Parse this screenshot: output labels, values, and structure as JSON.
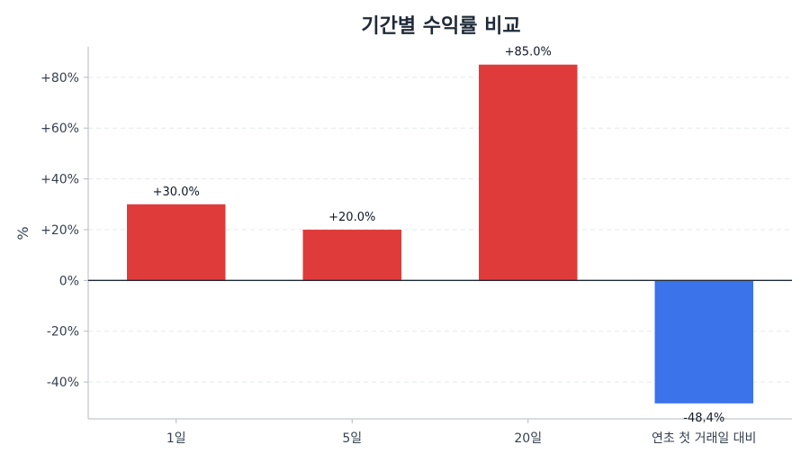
{
  "chart_data": {
    "type": "bar",
    "title": "기간별 수익률 비교",
    "ylabel": "%",
    "xlabel": "",
    "categories": [
      "1일",
      "5일",
      "20일",
      "연초 첫 거래일 대비"
    ],
    "values": [
      30.0,
      20.0,
      85.0,
      -48.4
    ],
    "data_labels": [
      "+30.0%",
      "+20.0%",
      "+85.0%",
      "-48.4%"
    ],
    "ylim": [
      -54.5,
      92
    ],
    "yticks": [
      -40,
      -20,
      0,
      20,
      40,
      60,
      80
    ],
    "ytick_labels": [
      "-40%",
      "-20%",
      "0%",
      "+20%",
      "+40%",
      "+60%",
      "+80%"
    ],
    "grid": "horizontal dashed",
    "legend": "none",
    "colors": {
      "positive": "#e03b3b",
      "negative": "#3b73ea"
    }
  }
}
